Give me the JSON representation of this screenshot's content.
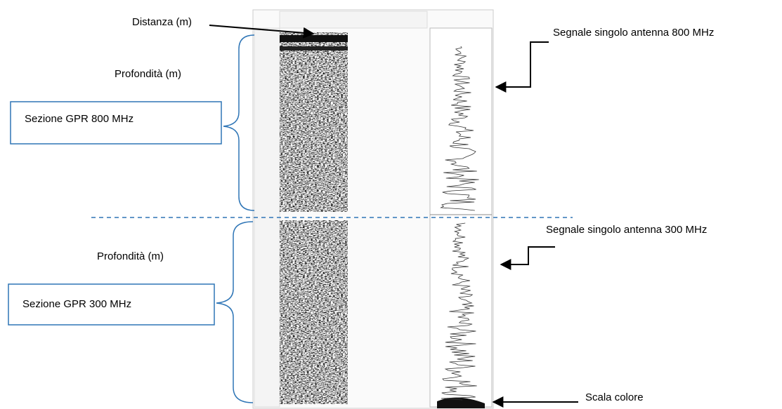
{
  "labels": {
    "distance": "Distanza (m)",
    "depth_800": "Profondità (m)",
    "depth_300": "Profondità (m)",
    "section_800": "Sezione GPR 800 MHz",
    "section_300": "Sezione GPR 300 MHz",
    "signal_800": "Segnale singolo antenna 800 MHz",
    "signal_300": "Segnale singolo antenna 300 MHz",
    "color_scale": "Scala colore"
  }
}
